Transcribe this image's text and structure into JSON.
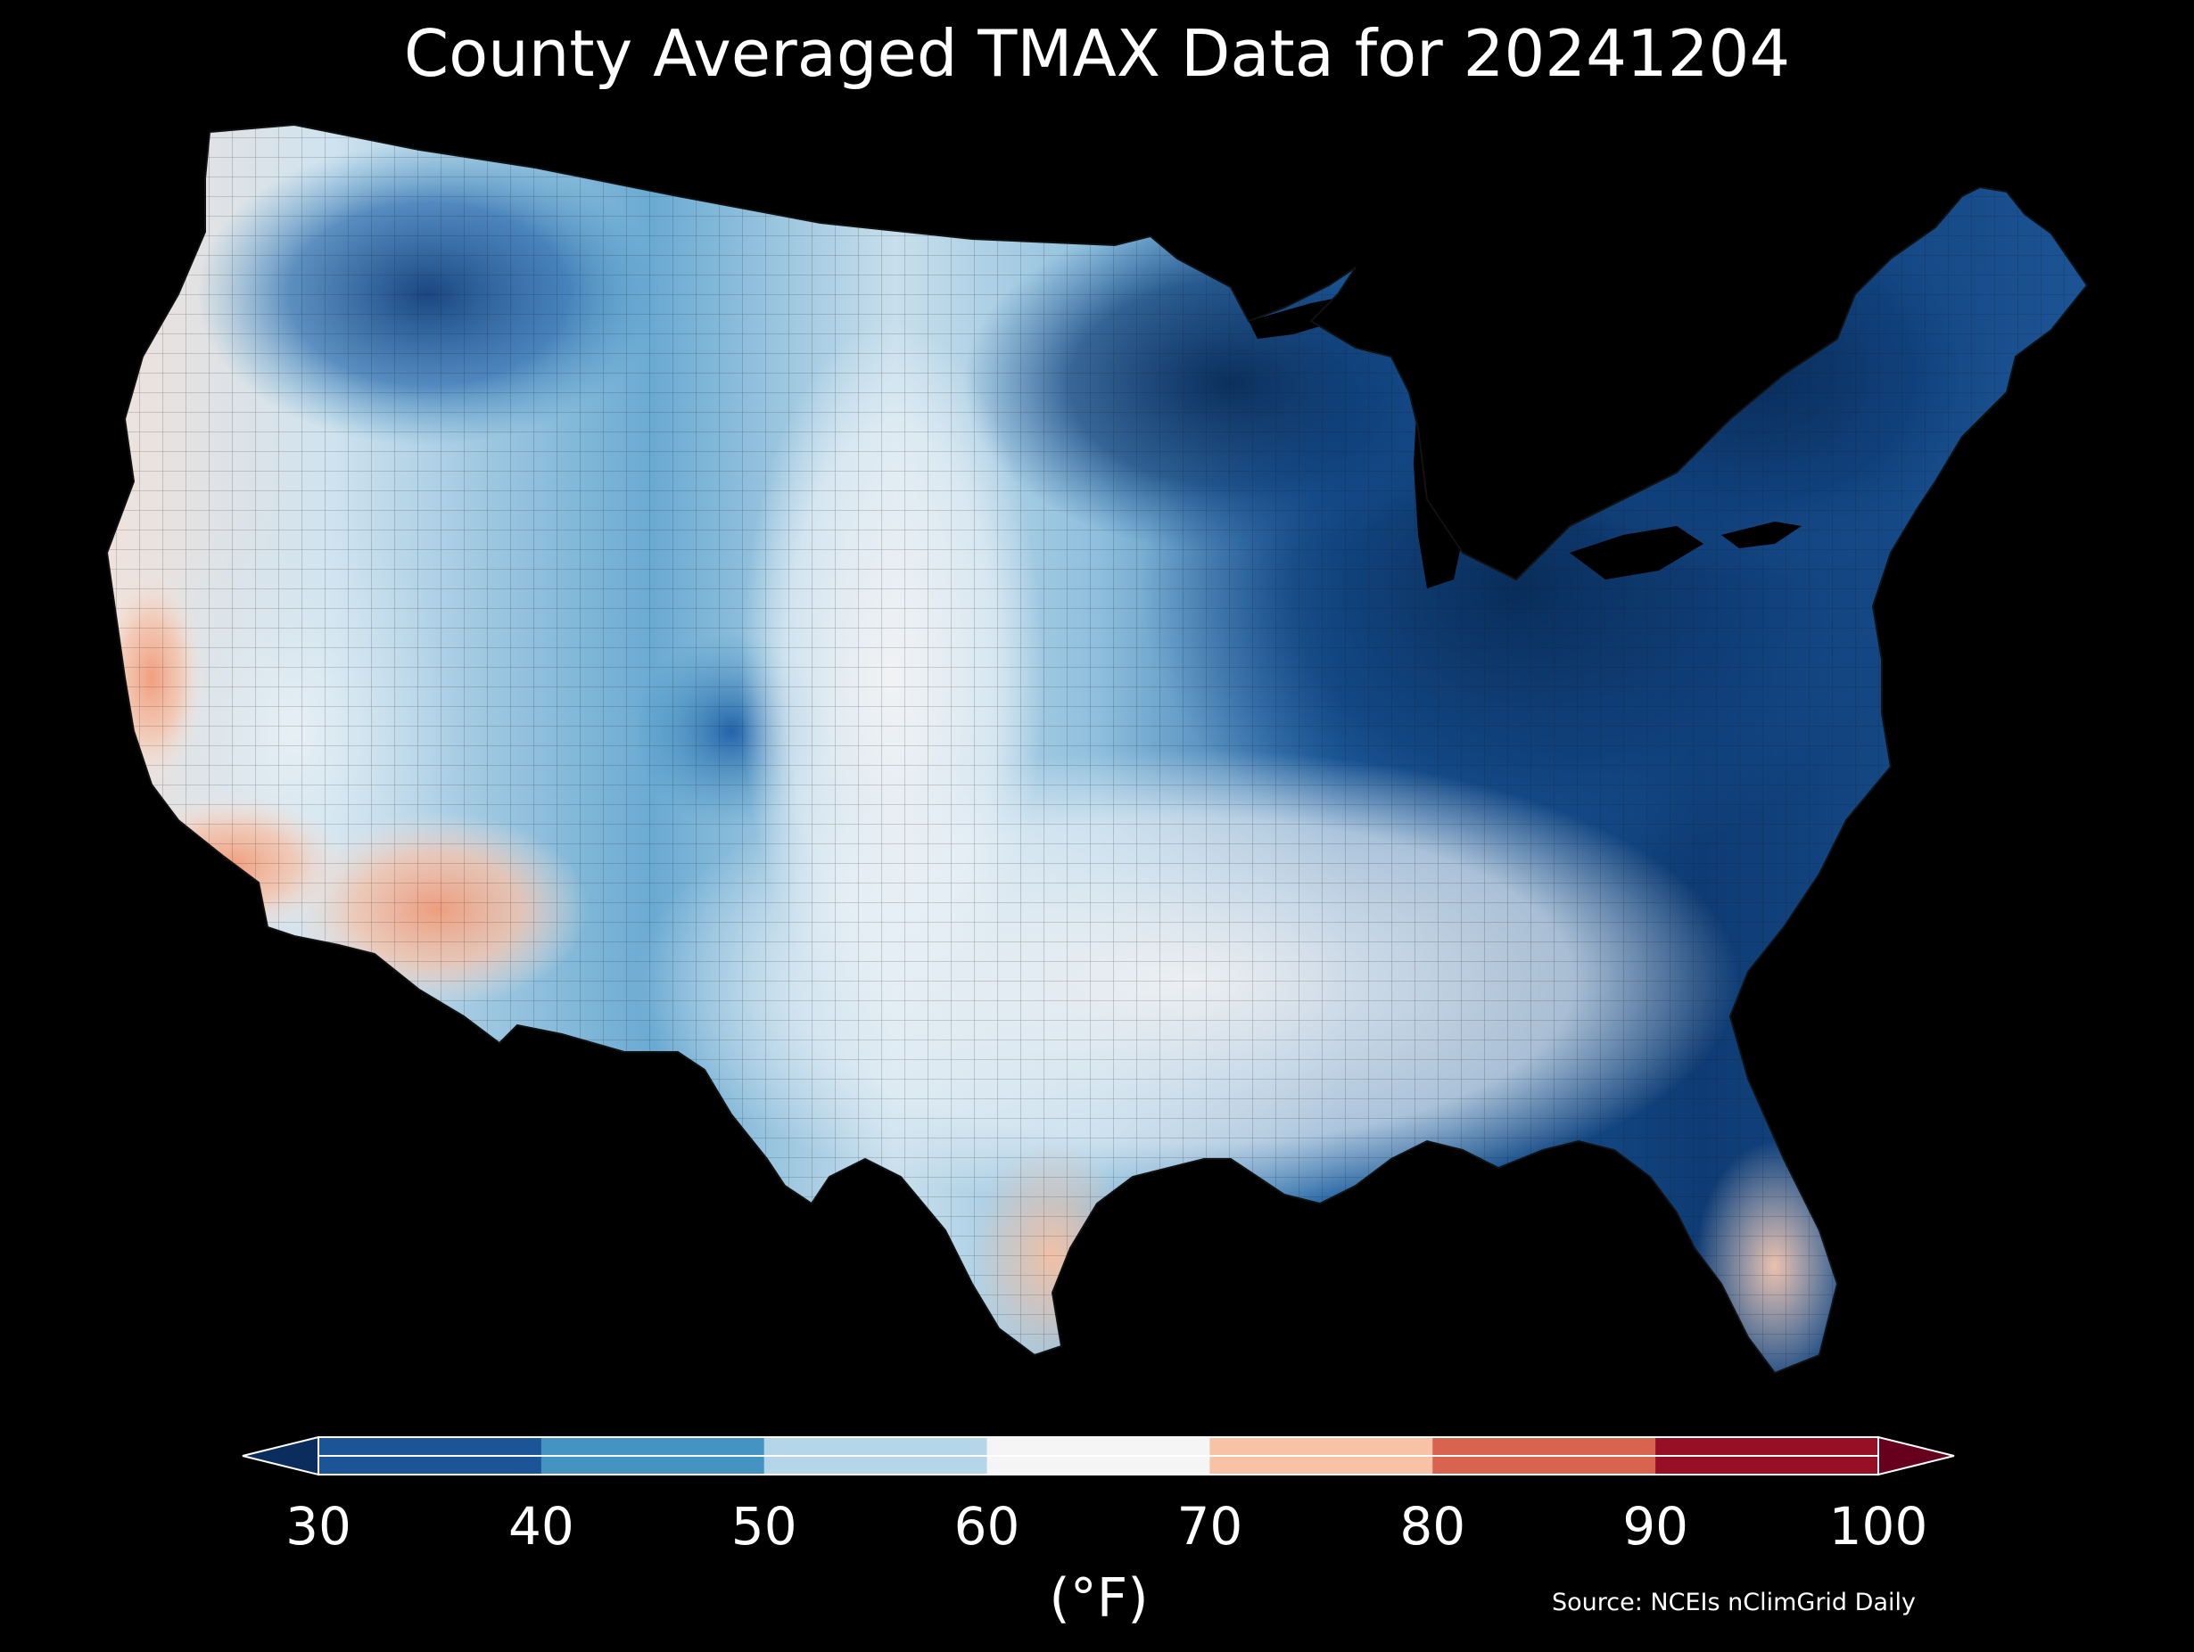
{
  "title": "County Averaged TMAX Data for 20241204",
  "colorbar": {
    "ticks": [
      "30",
      "40",
      "50",
      "60",
      "70",
      "80",
      "90",
      "100"
    ],
    "unit": "(°F)",
    "bins": [
      {
        "range": "<30",
        "color": "#0a2d5e"
      },
      {
        "range": "30-40",
        "color": "#1c5597"
      },
      {
        "range": "40-50",
        "color": "#4393c3"
      },
      {
        "range": "50-60",
        "color": "#b5d6e8"
      },
      {
        "range": "60-70",
        "color": "#f5f5f5"
      },
      {
        "range": "70-80",
        "color": "#f7c2a6"
      },
      {
        "range": "80-90",
        "color": "#d8634f"
      },
      {
        "range": "90-100",
        "color": "#960f25"
      },
      {
        "range": ">100",
        "color": "#66001d"
      }
    ]
  },
  "source": "Source: NCEIs nClimGrid Daily",
  "map": {
    "region": "Contiguous United States",
    "background": "#000000",
    "county_border_color": "#1a1a1a"
  }
}
